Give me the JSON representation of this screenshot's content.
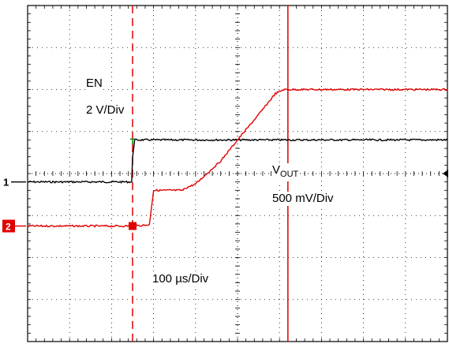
{
  "chart_data": {
    "type": "line",
    "title": "",
    "grid": true,
    "divisions": {
      "x": 10,
      "y": 8
    },
    "cursor_x_div": [
      2.5,
      6.2
    ],
    "channel_markers": {
      "ch1": {
        "label": "1",
        "color": "#000000",
        "ground_div": 3.8
      },
      "ch2": {
        "label": "2",
        "color": "#e00000",
        "ground_div": 2.75
      }
    },
    "annotations": {
      "en_name": "EN",
      "en_scale": "2 V/Div",
      "vout_name": "V",
      "vout_sub": "OUT",
      "vout_scale": "500 mV/Div",
      "timebase": "100 µs/Div"
    },
    "series": [
      {
        "name": "EN",
        "color": "#000000",
        "x_div": [
          0,
          2.48,
          2.5,
          2.55,
          10
        ],
        "y_div": [
          3.8,
          3.8,
          4.4,
          4.8,
          4.8
        ]
      },
      {
        "name": "VOUT",
        "color": "#e00000",
        "x_div": [
          0,
          2.55,
          2.9,
          3.0,
          3.7,
          3.75,
          4.0,
          4.6,
          5.0,
          5.5,
          5.9,
          6.1,
          10
        ],
        "y_div": [
          2.75,
          2.75,
          2.78,
          3.6,
          3.6,
          3.65,
          3.75,
          4.3,
          4.8,
          5.4,
          5.9,
          6.0,
          6.0
        ]
      }
    ]
  }
}
